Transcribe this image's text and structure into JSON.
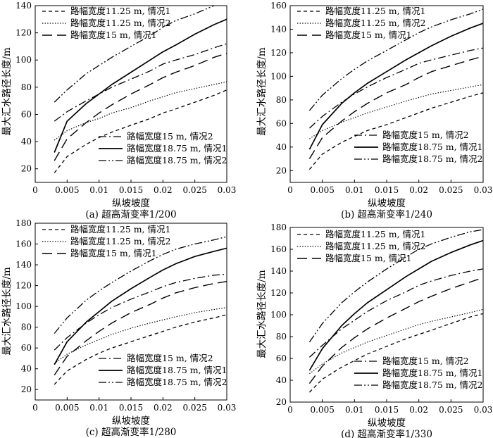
{
  "styles": {
    "s1": {
      "dash": "5,4",
      "width": 1.3
    },
    "s2": {
      "dash": "1.4,2.2",
      "width": 1.2
    },
    "s3": {
      "dash": "14,7",
      "width": 1.4
    },
    "s4": {
      "dash": "11,4,2,4",
      "width": 1.3
    },
    "s5": {
      "dash": "",
      "width": 1.7
    },
    "s6": {
      "dash": "11,3,2,3,2,3",
      "width": 1.3
    }
  },
  "chart_data": [
    {
      "type": "line",
      "caption": "(a) 超高渐变率1/200",
      "xlabel": "纵坡坡度",
      "ylabel": "最大汇水路径长度/m",
      "xlim": [
        0,
        0.03
      ],
      "ylim": [
        10,
        140
      ],
      "xticks": [
        "0",
        "0.005",
        "0.01",
        "0.015",
        "0.02",
        "0.025",
        "0.03"
      ],
      "yticks": [
        "20",
        "40",
        "60",
        "80",
        "100",
        "120",
        "140"
      ],
      "legend_top": [
        0,
        1,
        2
      ],
      "legend_bottom": [
        3,
        4,
        5
      ],
      "x": [
        0.003,
        0.005,
        0.008,
        0.01,
        0.012,
        0.015,
        0.018,
        0.02,
        0.022,
        0.025,
        0.028,
        0.03
      ],
      "series": [
        {
          "name": "路幅宽度11.25 m, 情况1",
          "style": "s1",
          "values": [
            17,
            29,
            38,
            43,
            47,
            52,
            57,
            61,
            64,
            69,
            74,
            78
          ]
        },
        {
          "name": "路幅宽度11.25 m, 情况2",
          "style": "s2",
          "values": [
            41,
            48,
            54,
            57,
            61,
            65,
            70,
            73,
            76,
            79,
            82,
            84
          ]
        },
        {
          "name": "路幅宽度15 m, 情况1",
          "style": "s3",
          "values": [
            26,
            42,
            54,
            61,
            67,
            75,
            82,
            87,
            91,
            96,
            102,
            105
          ]
        },
        {
          "name": "路幅宽度15 m, 情况2",
          "style": "s4",
          "values": [
            55,
            62,
            70,
            75,
            80,
            86,
            92,
            97,
            100,
            104,
            109,
            112
          ]
        },
        {
          "name": "路幅宽度18.75 m, 情况1",
          "style": "s5",
          "values": [
            32,
            55,
            68,
            75,
            82,
            91,
            100,
            106,
            111,
            119,
            126,
            130
          ]
        },
        {
          "name": "路幅宽度18.75 m, 情况2",
          "style": "s6",
          "values": [
            69,
            78,
            90,
            96,
            102,
            110,
            118,
            124,
            129,
            134,
            140,
            143
          ]
        }
      ]
    },
    {
      "type": "line",
      "caption": "(b) 超高渐变率1/240",
      "xlabel": "纵坡坡度",
      "ylabel": "最大汇水路径长度/m",
      "xlim": [
        0,
        0.03
      ],
      "ylim": [
        10,
        160
      ],
      "xticks": [
        "0",
        "0.005",
        "0.01",
        "0.015",
        "0.02",
        "0.025",
        "0.03"
      ],
      "yticks": [
        "20",
        "40",
        "60",
        "80",
        "100",
        "120",
        "140",
        "160"
      ],
      "legend_top": [
        0,
        1,
        2
      ],
      "legend_bottom": [
        3,
        4,
        5
      ],
      "x": [
        0.003,
        0.005,
        0.008,
        0.01,
        0.012,
        0.015,
        0.018,
        0.02,
        0.022,
        0.025,
        0.028,
        0.03
      ],
      "series": [
        {
          "name": "路幅宽度11.25 m, 情况1",
          "style": "s1",
          "values": [
            21,
            34,
            44,
            49,
            54,
            59,
            65,
            69,
            73,
            78,
            83,
            86
          ]
        },
        {
          "name": "路幅宽度11.25 m, 情况2",
          "style": "s2",
          "values": [
            47,
            54,
            61,
            65,
            69,
            74,
            79,
            82,
            85,
            88,
            91,
            93
          ]
        },
        {
          "name": "路幅宽度15 m, 情况1",
          "style": "s3",
          "values": [
            30,
            48,
            62,
            70,
            77,
            86,
            93,
            99,
            104,
            109,
            114,
            117
          ]
        },
        {
          "name": "路幅宽度15 m, 情况2",
          "style": "s4",
          "values": [
            56,
            66,
            78,
            85,
            91,
            99,
            106,
            111,
            114,
            118,
            122,
            124
          ]
        },
        {
          "name": "路幅宽度18.75 m, 情况1",
          "style": "s5",
          "values": [
            38,
            59,
            77,
            86,
            94,
            104,
            114,
            120,
            126,
            134,
            141,
            145
          ]
        },
        {
          "name": "路幅宽度18.75 m, 情况2",
          "style": "s6",
          "values": [
            71,
            84,
            98,
            106,
            113,
            122,
            131,
            137,
            142,
            148,
            153,
            157
          ]
        }
      ]
    },
    {
      "type": "line",
      "caption": "(c) 超高渐变率1/280",
      "xlabel": "纵坡坡度",
      "ylabel": "最大汇水路径长度/m",
      "xlim": [
        0,
        0.03
      ],
      "ylim": [
        10,
        180
      ],
      "xticks": [
        "0",
        "0.005",
        "0.01",
        "0.015",
        "0.02",
        "0.025",
        "0.03"
      ],
      "yticks": [
        "20",
        "40",
        "60",
        "80",
        "100",
        "120",
        "140",
        "160",
        "180"
      ],
      "legend_top": [
        0,
        1,
        2
      ],
      "legend_bottom": [
        3,
        4,
        5
      ],
      "x": [
        0.003,
        0.005,
        0.008,
        0.01,
        0.012,
        0.015,
        0.018,
        0.02,
        0.022,
        0.025,
        0.028,
        0.03
      ],
      "series": [
        {
          "name": "路幅宽度11.25 m, 情况1",
          "style": "s1",
          "values": [
            25,
            38,
            49,
            55,
            60,
            66,
            72,
            76,
            80,
            85,
            89,
            92
          ]
        },
        {
          "name": "路幅宽度11.25 m, 情况2",
          "style": "s2",
          "values": [
            45,
            54,
            63,
            68,
            73,
            79,
            84,
            87,
            90,
            94,
            97,
            99
          ]
        },
        {
          "name": "路幅宽度15 m, 情况1",
          "style": "s3",
          "values": [
            34,
            52,
            67,
            76,
            84,
            94,
            102,
            108,
            113,
            118,
            122,
            124
          ]
        },
        {
          "name": "路幅宽度15 m, 情况2",
          "style": "s4",
          "values": [
            58,
            70,
            84,
            92,
            99,
            107,
            114,
            119,
            123,
            127,
            130,
            131
          ]
        },
        {
          "name": "路幅宽度18.75 m, 情况1",
          "style": "s5",
          "values": [
            44,
            66,
            85,
            95,
            105,
            117,
            128,
            135,
            141,
            148,
            153,
            156
          ]
        },
        {
          "name": "路幅宽度18.75 m, 情况2",
          "style": "s6",
          "values": [
            74,
            89,
            106,
            115,
            123,
            134,
            144,
            150,
            155,
            160,
            164,
            167
          ]
        }
      ]
    },
    {
      "type": "line",
      "caption": "(d) 超高渐变率1/330",
      "xlabel": "纵坡坡度",
      "ylabel": "最大汇水路径长度/m",
      "xlim": [
        0,
        0.03
      ],
      "ylim": [
        20,
        180
      ],
      "xticks": [
        "0",
        "0.005",
        "0.01",
        "0.015",
        "0.02",
        "0.025",
        "0.03"
      ],
      "yticks": [
        "20",
        "40",
        "60",
        "80",
        "100",
        "120",
        "140",
        "160",
        "180"
      ],
      "legend_top": [
        0,
        1,
        2
      ],
      "legend_bottom": [
        3,
        4,
        5
      ],
      "x": [
        0.003,
        0.005,
        0.008,
        0.01,
        0.012,
        0.015,
        0.018,
        0.02,
        0.022,
        0.025,
        0.028,
        0.03
      ],
      "series": [
        {
          "name": "路幅宽度11.25 m, 情况1",
          "style": "s1",
          "values": [
            29,
            41,
            52,
            58,
            64,
            71,
            78,
            82,
            86,
            92,
            98,
            101
          ]
        },
        {
          "name": "路幅宽度11.25 m, 情况2",
          "style": "s2",
          "values": [
            46,
            55,
            65,
            70,
            75,
            81,
            87,
            91,
            94,
            98,
            102,
            105
          ]
        },
        {
          "name": "路幅宽度15 m, 情况1",
          "style": "s3",
          "values": [
            37,
            53,
            70,
            79,
            87,
            97,
            106,
            112,
            117,
            124,
            130,
            134
          ]
        },
        {
          "name": "路幅宽度15 m, 情况2",
          "style": "s4",
          "values": [
            61,
            72,
            87,
            95,
            103,
            113,
            121,
            127,
            131,
            136,
            140,
            142
          ]
        },
        {
          "name": "路幅宽度18.75 m, 情况1",
          "style": "s5",
          "values": [
            49,
            69,
            90,
            101,
            111,
            123,
            135,
            142,
            149,
            157,
            164,
            168
          ]
        },
        {
          "name": "路幅宽度18.75 m, 情况2",
          "style": "s6",
          "values": [
            75,
            92,
            111,
            121,
            130,
            142,
            153,
            160,
            165,
            171,
            176,
            178
          ]
        }
      ]
    }
  ]
}
